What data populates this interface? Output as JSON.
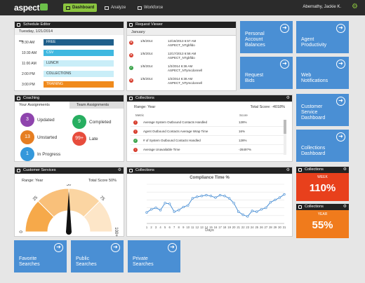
{
  "header": {
    "logo": "aspect",
    "nav": [
      {
        "label": "Dashboard",
        "active": true
      },
      {
        "label": "Analyze",
        "active": false
      },
      {
        "label": "Workforce",
        "active": false
      }
    ],
    "user": "Abernathy, Jackie K."
  },
  "schedule": {
    "title": "Schedule Editor",
    "date": "Tuesday, 1/21/2014",
    "rows": [
      {
        "time": "8:30 AM",
        "label": "FREE",
        "color": "#1f5f8b"
      },
      {
        "time": "10:30 AM",
        "label": "CSV",
        "color": "#3fb8e0"
      },
      {
        "time": "11:00 AM",
        "label": "LUNCH",
        "color": "#c9eef8"
      },
      {
        "time": "2:00 PM",
        "label": "COLLECTIONS",
        "color": "#c9eef8"
      },
      {
        "time": "3:00 PM",
        "label": "TRAINING",
        "color": "#f08a1c"
      }
    ]
  },
  "request_viewer": {
    "title": "Request Viewer",
    "month": "January",
    "rows": [
      {
        "status": "rejected",
        "date": "1/5/2014",
        "info1": "12/16/2013 6:57 AM",
        "info2": "ASPECT_NTgbfldo"
      },
      {
        "status": "rejected",
        "date": "1/5/2014",
        "info1": "12/17/2013 6:58 AM",
        "info2": "ASPECT_NTgbfldo"
      },
      {
        "status": "approved",
        "date": "1/5/2014",
        "info1": "1/2/2014 6:36 AM",
        "info2": "ASPECT_NTymcdonnell"
      },
      {
        "status": "rejected",
        "date": "1/5/2014",
        "info1": "1/2/2014 6:38 AM",
        "info2": "ASPECT_NTymcdonnell"
      }
    ]
  },
  "tiles": {
    "personal": "Personal Account Balances",
    "agent": "Agent Productivity",
    "request_bids": "Request Bids",
    "web_notif": "Web Notifications",
    "customer_service": "Customer Service Dashboard",
    "collections": "Collections Dashboard",
    "favorite": "Favorite Searches",
    "public": "Public Searches",
    "private": "Private Searches"
  },
  "coaching": {
    "title": "Coaching",
    "tab_yours": "Your Assignments",
    "tab_team": "Team Assignments",
    "items": [
      {
        "count": "3",
        "label": "Updated",
        "color": "#8e44ad"
      },
      {
        "count": "13",
        "label": "Unstarted",
        "color": "#e67e22"
      },
      {
        "count": "1",
        "label": "In Progress",
        "color": "#3498db"
      },
      {
        "count": "9",
        "label": "Completed",
        "color": "#27ae60"
      },
      {
        "count": "99+",
        "label": "Late",
        "color": "#e74c3c"
      }
    ]
  },
  "collections_metrics": {
    "title": "Collections",
    "range": "Range: Year",
    "total": "Total Score: -4018%",
    "col_metric": "Metric",
    "col_score": "Score",
    "rows": [
      {
        "status": "bad",
        "metric": "Average System Outbound Contacts Handled",
        "score": "128%"
      },
      {
        "status": "bad",
        "metric": "Agent Outbound Contacts Average Wrap Time",
        "score": "16%"
      },
      {
        "status": "good",
        "metric": "# of System Outbound Contacts Handled",
        "score": "128%"
      },
      {
        "status": "bad",
        "metric": "Average Unavailable Time",
        "score": "-2849?%"
      }
    ]
  },
  "customer_services": {
    "title": "Customer Services",
    "range": "Range: Year",
    "total": "Total Score 50%",
    "gauge_value": 50,
    "ticks": [
      "0",
      "25",
      "50",
      "75",
      "100+"
    ]
  },
  "compliance": {
    "title": "Collections",
    "chart_title": "Compliance Time %",
    "xlabel": "Days"
  },
  "chart_data": {
    "type": "line",
    "title": "Compliance Time %",
    "xlabel": "Days",
    "ylabel": "",
    "x": [
      1,
      2,
      3,
      4,
      5,
      6,
      7,
      8,
      9,
      10,
      11,
      12,
      13,
      14,
      15,
      16,
      17,
      18,
      19,
      20,
      21,
      22,
      23,
      24,
      25,
      26,
      27,
      28,
      29,
      30,
      31
    ],
    "values": [
      28,
      36,
      40,
      34,
      52,
      50,
      30,
      34,
      42,
      46,
      64,
      68,
      70,
      72,
      70,
      66,
      72,
      70,
      64,
      52,
      30,
      22,
      18,
      32,
      30,
      36,
      40,
      54,
      60,
      66,
      74
    ],
    "ylim": [
      0,
      100
    ],
    "grid": true
  },
  "kpi": [
    {
      "title": "Collections",
      "label": "WEEK",
      "value": "110%",
      "color": "#e8401c"
    },
    {
      "title": "Collections",
      "label": "YEAR",
      "value": "55%",
      "color": "#f07b1c"
    }
  ]
}
